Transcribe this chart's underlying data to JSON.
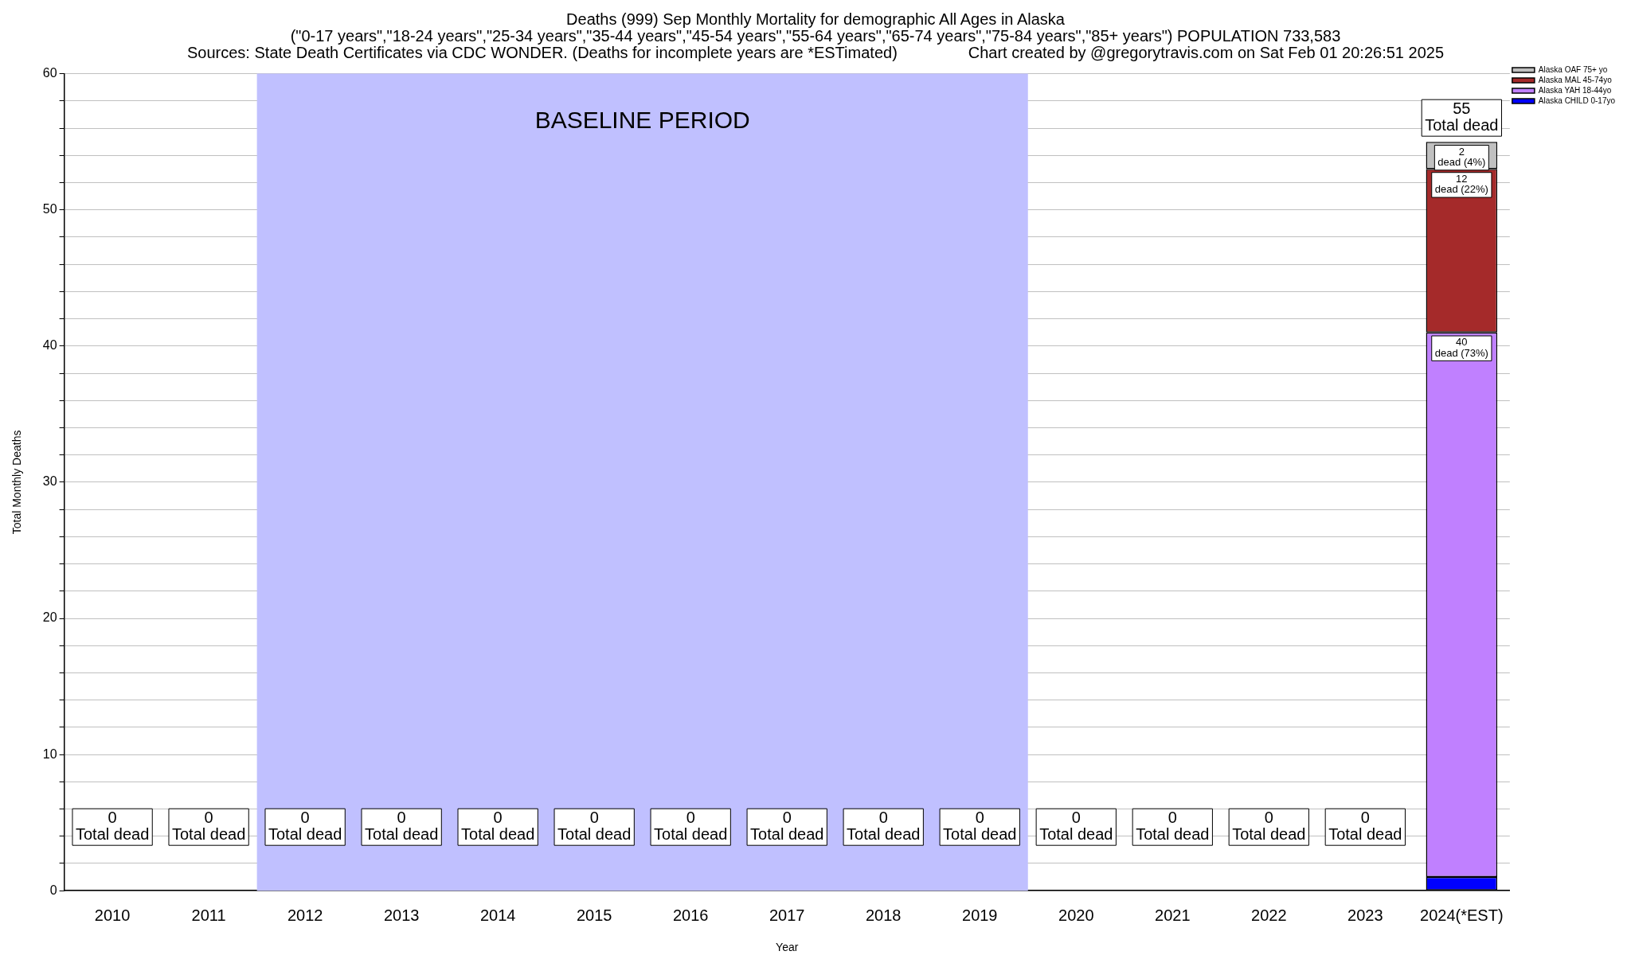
{
  "chart_data": {
    "type": "bar",
    "stacked": true,
    "title": "Deaths (999) Sep Monthly Mortality for demographic All Ages in Alaska",
    "subtitle": "(\"0-17 years\",\"18-24 years\",\"25-34 years\",\"35-44 years\",\"45-54 years\",\"55-64 years\",\"65-74 years\",\"75-84 years\",\"85+ years\") POPULATION 733,583",
    "annotations": [
      "Sources: State Death Certificates via CDC WONDER. (Deaths for incomplete years are *ESTimated)",
      "Chart created by @gregorytravis.com on Sat Feb 01 20:26:51 2025"
    ],
    "xlabel": "Year",
    "ylabel": "Total Monthly Deaths",
    "categories": [
      "2010",
      "2011",
      "2012",
      "2013",
      "2014",
      "2015",
      "2016",
      "2017",
      "2018",
      "2019",
      "2020",
      "2021",
      "2022",
      "2023",
      "2024(*EST)"
    ],
    "series": [
      {
        "name": "Alaska CHILD 0-17yo",
        "color": "#0000ff",
        "values": [
          0,
          0,
          0,
          0,
          0,
          0,
          0,
          0,
          0,
          0,
          0,
          0,
          0,
          0,
          1
        ]
      },
      {
        "name": "Alaska YAH 18-44yo",
        "color": "#c080ff",
        "values": [
          0,
          0,
          0,
          0,
          0,
          0,
          0,
          0,
          0,
          0,
          0,
          0,
          0,
          0,
          40
        ],
        "value_labels": [
          null,
          null,
          null,
          null,
          null,
          null,
          null,
          null,
          null,
          null,
          null,
          null,
          null,
          null,
          "40\ndead (73%)"
        ]
      },
      {
        "name": "Alaska MAL 45-74yo",
        "color": "#a52a2a",
        "values": [
          0,
          0,
          0,
          0,
          0,
          0,
          0,
          0,
          0,
          0,
          0,
          0,
          0,
          0,
          12
        ],
        "value_labels": [
          null,
          null,
          null,
          null,
          null,
          null,
          null,
          null,
          null,
          null,
          null,
          null,
          null,
          null,
          "12\ndead (22%)"
        ]
      },
      {
        "name": "Alaska OAF 75+ yo",
        "color": "#c0c0c0",
        "values": [
          0,
          0,
          0,
          0,
          0,
          0,
          0,
          0,
          0,
          0,
          0,
          0,
          0,
          0,
          2
        ],
        "value_labels": [
          null,
          null,
          null,
          null,
          null,
          null,
          null,
          null,
          null,
          null,
          null,
          null,
          null,
          null,
          "2\ndead (4%)"
        ]
      }
    ],
    "totals": [
      "0\nTotal dead",
      "0\nTotal dead",
      "0\nTotal dead",
      "0\nTotal dead",
      "0\nTotal dead",
      "0\nTotal dead",
      "0\nTotal dead",
      "0\nTotal dead",
      "0\nTotal dead",
      "0\nTotal dead",
      "0\nTotal dead",
      "0\nTotal dead",
      "0\nTotal dead",
      "0\nTotal dead",
      "55\nTotal dead"
    ],
    "bands": [
      {
        "axis": "x",
        "from": "2012",
        "to": "2019",
        "label": "BASELINE PERIOD",
        "color": "#c0c0ff"
      }
    ],
    "ylim": [
      0,
      60
    ],
    "yticks": [
      0,
      {
        "value": 2,
        "label": null
      },
      {
        "value": 4,
        "label": null
      },
      {
        "value": 6,
        "label": null
      },
      {
        "value": 8,
        "label": null
      },
      10,
      {
        "value": 12,
        "label": null
      },
      {
        "value": 14,
        "label": null
      },
      {
        "value": 16,
        "label": null
      },
      {
        "value": 18,
        "label": null
      },
      20,
      {
        "value": 22,
        "label": null
      },
      {
        "value": 24,
        "label": null
      },
      {
        "value": 26,
        "label": null
      },
      {
        "value": 28,
        "label": null
      },
      30,
      {
        "value": 32,
        "label": null
      },
      {
        "value": 34,
        "label": null
      },
      {
        "value": 36,
        "label": null
      },
      {
        "value": 38,
        "label": null
      },
      40,
      {
        "value": 42,
        "label": null
      },
      {
        "value": 44,
        "label": null
      },
      {
        "value": 46,
        "label": null
      },
      {
        "value": 48,
        "label": null
      },
      50,
      {
        "value": 52,
        "label": null
      },
      {
        "value": 54,
        "label": null
      },
      {
        "value": 56,
        "label": null
      },
      {
        "value": 58,
        "label": null
      },
      60
    ],
    "grid": "y",
    "legend": "top right"
  }
}
